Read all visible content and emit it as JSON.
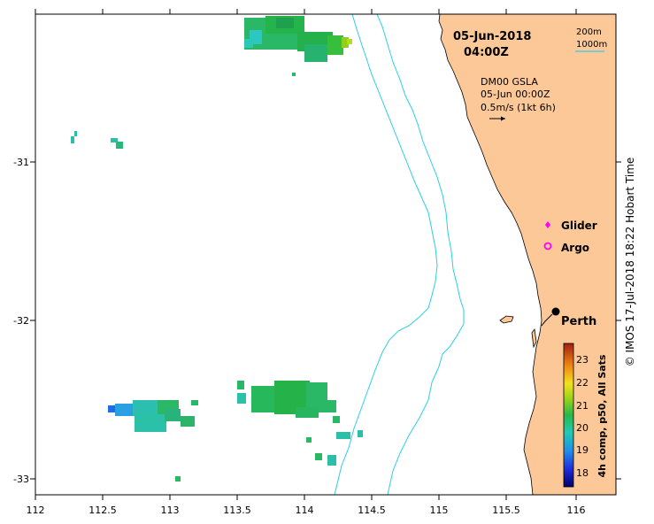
{
  "header": {
    "date": "05-Jun-2018",
    "time": "04:00Z"
  },
  "overlay": {
    "product": "DM00 GSLA",
    "product_time": "05-Jun 00:00Z",
    "vector_scale": "0.5m/s (1kt 6h)"
  },
  "bathymetry_legend": {
    "contour_1": "200m",
    "contour_2": "1000m",
    "color": "#29cfe6"
  },
  "markers": {
    "glider_label": "Glider",
    "argo_label": "Argo",
    "city_label": "Perth",
    "glider_color": "#ff00ff",
    "argo_color": "#ff00ff"
  },
  "colorbar": {
    "label": "4h comp, p50, All Sats",
    "ticks": [
      "23",
      "22",
      "21",
      "20",
      "19",
      "18"
    ],
    "min": 17.5,
    "max": 23.8
  },
  "axes": {
    "x_ticks": [
      "112",
      "112.5",
      "113",
      "113.5",
      "114",
      "114.5",
      "115",
      "115.5",
      "116"
    ],
    "y_ticks": [
      "-31",
      "-32",
      "-33"
    ]
  },
  "credit": "© IMOS 17-Jul-2018 18:22 Hobart Time",
  "colors": {
    "land": "#fcc898",
    "contour": "#29cfe6"
  }
}
